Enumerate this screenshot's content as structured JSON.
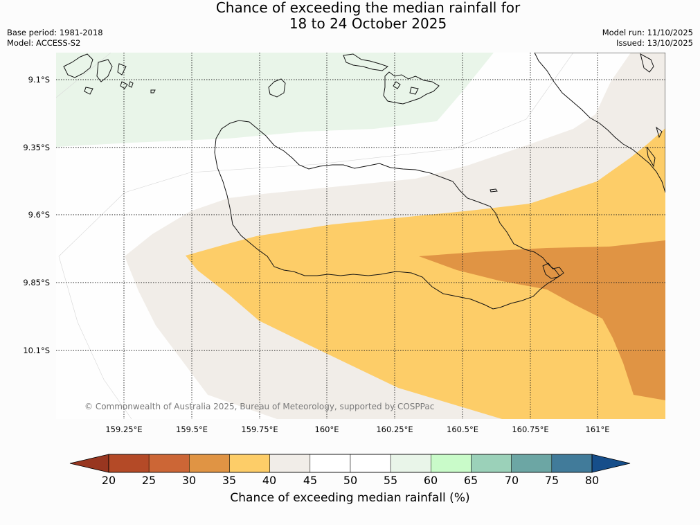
{
  "title": {
    "line1": "Chance of exceeding the median rainfall for",
    "line2": "18 to 24 October 2025"
  },
  "meta": {
    "base_period": "Base period: 1981-2018",
    "model": "Model: ACCESS-S2",
    "model_run": "Model run: 11/10/2025",
    "issued": "Issued: 13/10/2025"
  },
  "map": {
    "lat_labels": [
      "9.1°S",
      "9.35°S",
      "9.6°S",
      "9.85°S",
      "10.1°S"
    ],
    "lon_labels": [
      "159.25°E",
      "159.5°E",
      "159.75°E",
      "160°E",
      "160.25°E",
      "160.5°E",
      "160.75°E",
      "161°E"
    ],
    "copyright": "© Commonwealth of Australia 2025, Bureau of Meteorology, supported by COSPPac",
    "shading_colors": {
      "p30_35": "#e09444",
      "p35_40": "#fdcd68",
      "p40_45": "#f1ede8",
      "p45_55": "#fefefe",
      "p55_60": "#e9f5e9"
    }
  },
  "colorbar": {
    "title": "Chance of exceeding median rainfall (%)",
    "ticks": [
      "20",
      "25",
      "30",
      "35",
      "40",
      "45",
      "50",
      "55",
      "60",
      "65",
      "70",
      "75",
      "80"
    ],
    "colors": [
      "#b44a27",
      "#cc6636",
      "#e09444",
      "#fdcd68",
      "#f1ede8",
      "#ffffff",
      "#ffffff",
      "#e9f5e9",
      "#c9fbc9",
      "#9bd1b9",
      "#6ca6a4",
      "#417b9a"
    ],
    "under_color": "#983620",
    "over_color": "#164e8a"
  }
}
